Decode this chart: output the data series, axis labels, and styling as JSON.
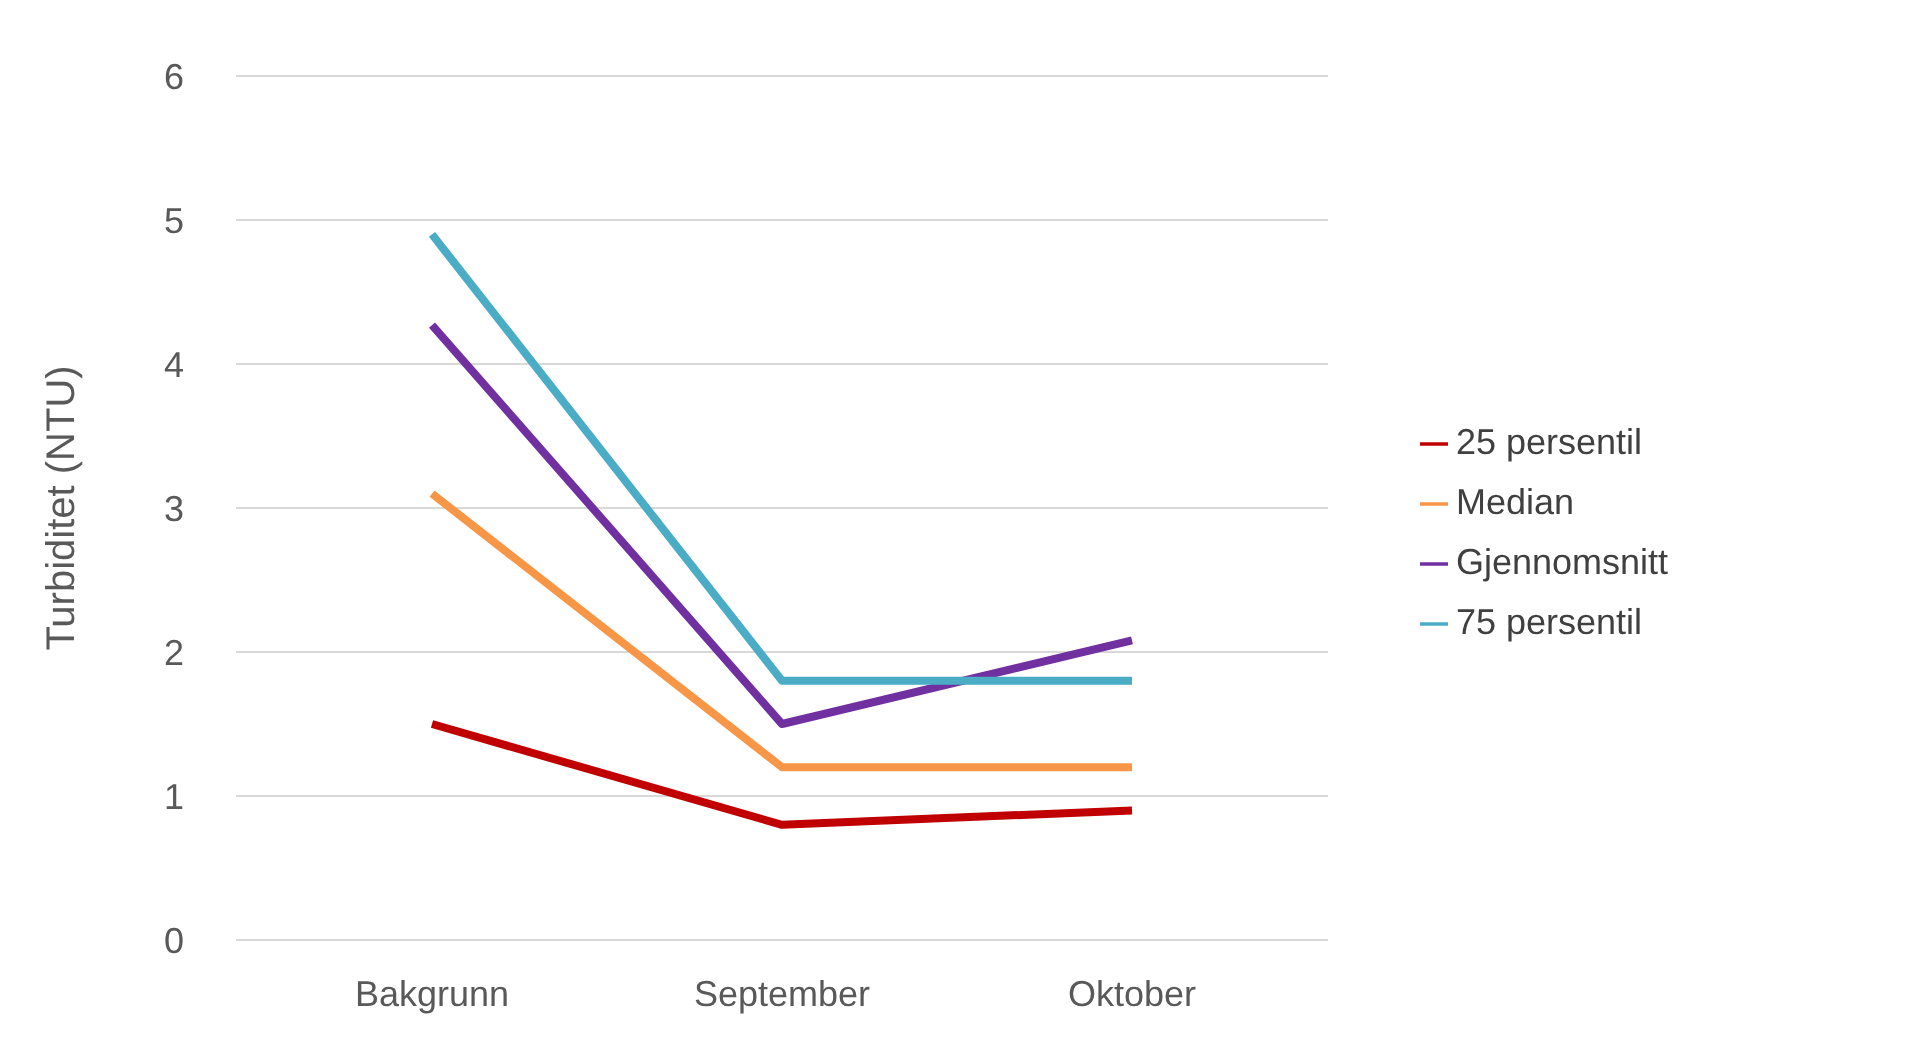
{
  "chart_data": {
    "type": "line",
    "ylabel": "Turbiditet (NTU)",
    "categories": [
      "Bakgrunn",
      "September",
      "Oktober"
    ],
    "series": [
      {
        "name": "25 persentil",
        "color": "#c00000",
        "values": [
          1.5,
          0.8,
          0.9
        ]
      },
      {
        "name": "Median",
        "color": "#f79646",
        "values": [
          3.1,
          1.2,
          1.2
        ]
      },
      {
        "name": "Gjennomsnitt",
        "color": "#7030a0",
        "values": [
          4.27,
          1.5,
          2.08
        ]
      },
      {
        "name": "75 persentil",
        "color": "#4bacc6",
        "values": [
          4.9,
          1.8,
          1.8
        ]
      }
    ],
    "ylim": [
      0,
      6
    ],
    "yticks": [
      0,
      1,
      2,
      3,
      4,
      5,
      6
    ],
    "grid": "y",
    "legend": "right",
    "marker": "none"
  }
}
